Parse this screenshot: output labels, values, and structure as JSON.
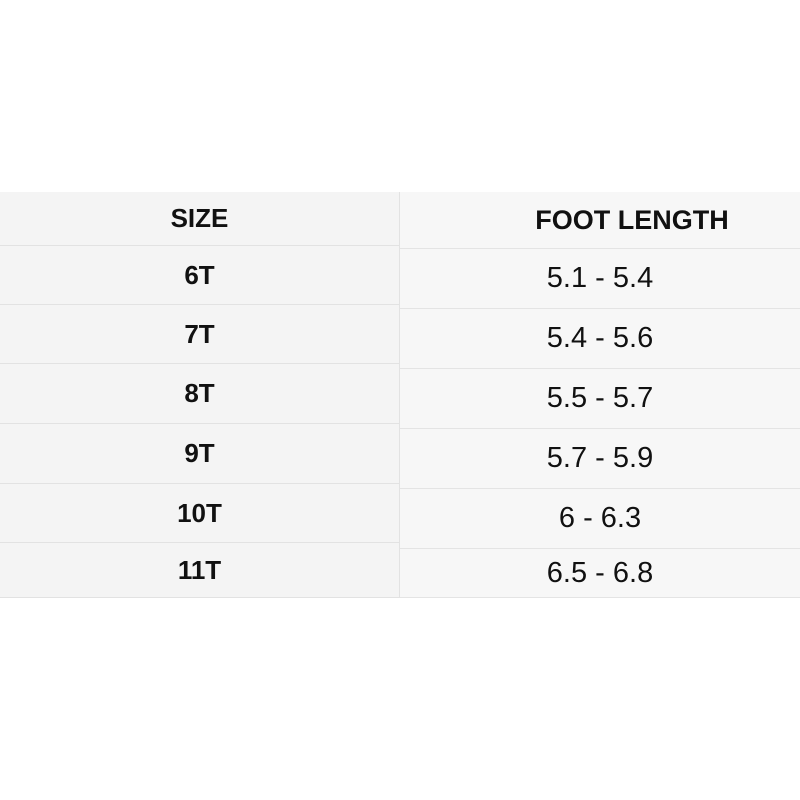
{
  "table": {
    "header": [
      "SIZE",
      "FOOT LENGTH"
    ],
    "rows": [
      [
        "6T",
        "5.1 - 5.4"
      ],
      [
        "7T",
        "5.4 - 5.6"
      ],
      [
        "8T",
        "5.5 - 5.7"
      ],
      [
        "9T",
        "5.7 - 5.9"
      ],
      [
        "10T",
        "6 - 6.3"
      ],
      [
        "11T",
        "6.5 - 6.8"
      ]
    ]
  }
}
